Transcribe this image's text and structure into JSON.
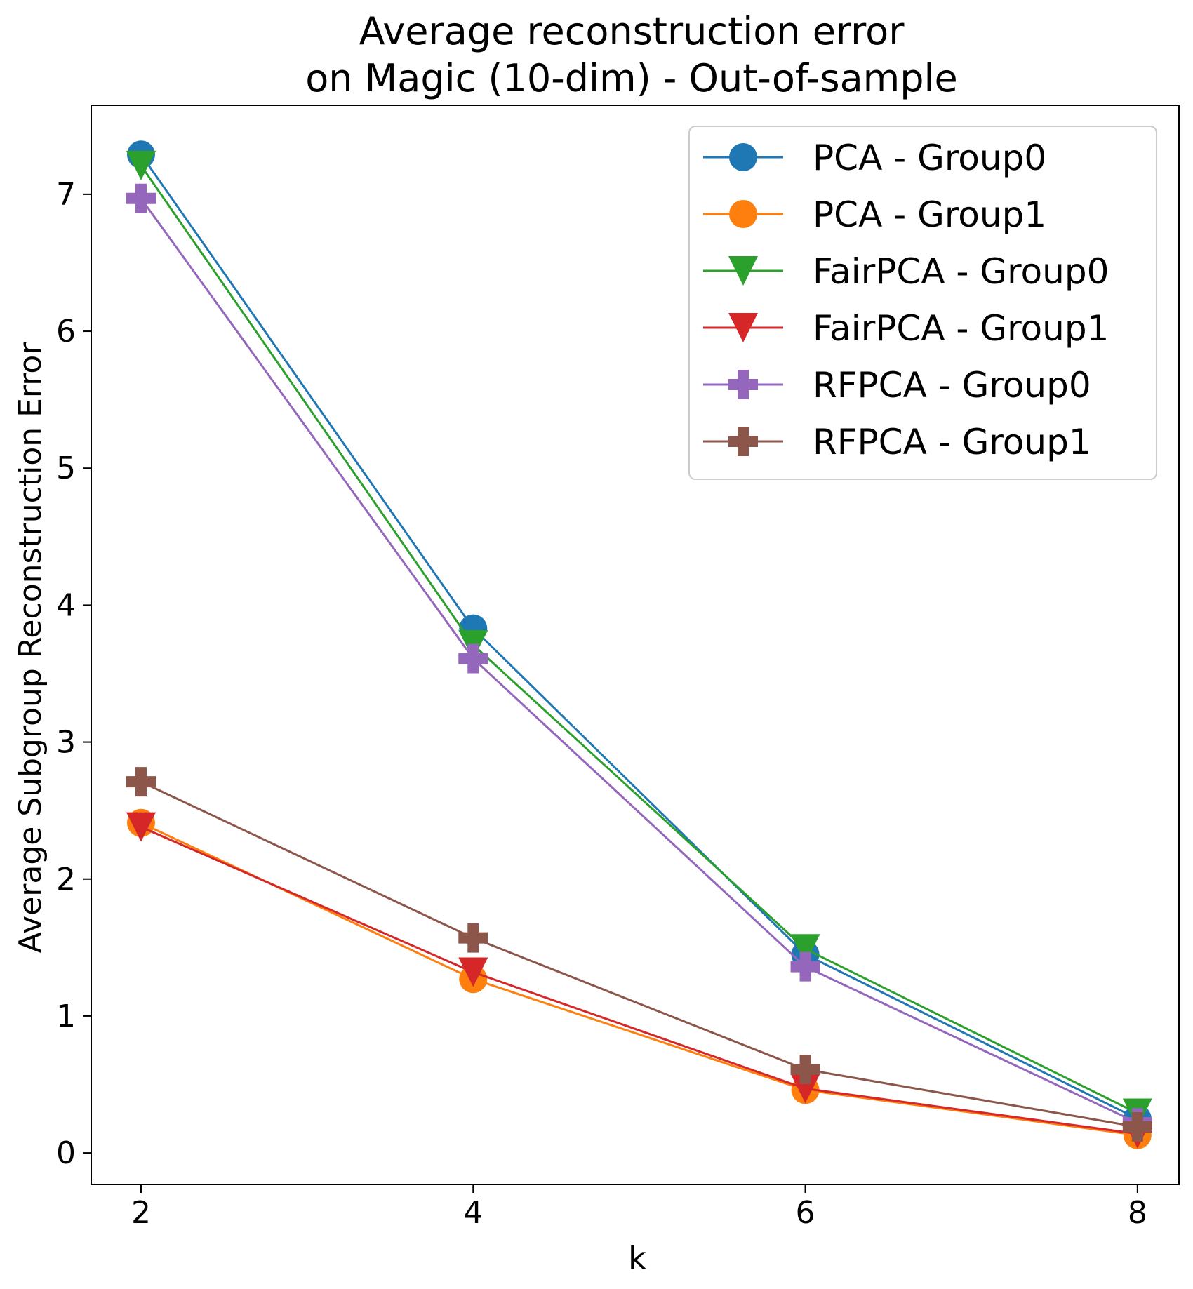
{
  "chart_data": {
    "type": "line",
    "title_lines": [
      "Average reconstruction error",
      "on Magic (10-dim) - Out-of-sample"
    ],
    "xlabel": "k",
    "ylabel": "Average Subgroup Reconstruction Error",
    "x": [
      2,
      4,
      6,
      8
    ],
    "xticks": [
      2,
      4,
      6,
      8
    ],
    "yticks": [
      0,
      1,
      2,
      3,
      4,
      5,
      6,
      7
    ],
    "xlim": [
      1.7,
      8.25
    ],
    "ylim": [
      -0.23,
      7.65
    ],
    "grid": false,
    "legend_position": "top-right",
    "series": [
      {
        "name": "PCA - Group0",
        "color": "#1f77b4",
        "marker": "circle",
        "values": [
          7.29,
          3.83,
          1.45,
          0.25
        ]
      },
      {
        "name": "PCA - Group1",
        "color": "#ff7f0e",
        "marker": "circle",
        "values": [
          2.41,
          1.27,
          0.46,
          0.13
        ]
      },
      {
        "name": "FairPCA - Group0",
        "color": "#2ca02c",
        "marker": "triangle-down",
        "values": [
          7.21,
          3.71,
          1.49,
          0.29
        ]
      },
      {
        "name": "FairPCA - Group1",
        "color": "#d62728",
        "marker": "triangle-down",
        "values": [
          2.38,
          1.32,
          0.47,
          0.14
        ]
      },
      {
        "name": "RFPCA - Group0",
        "color": "#9467bd",
        "marker": "plus",
        "values": [
          6.97,
          3.61,
          1.36,
          0.22
        ]
      },
      {
        "name": "RFPCA - Group1",
        "color": "#8c564b",
        "marker": "plus",
        "values": [
          2.71,
          1.57,
          0.61,
          0.19
        ]
      }
    ]
  }
}
